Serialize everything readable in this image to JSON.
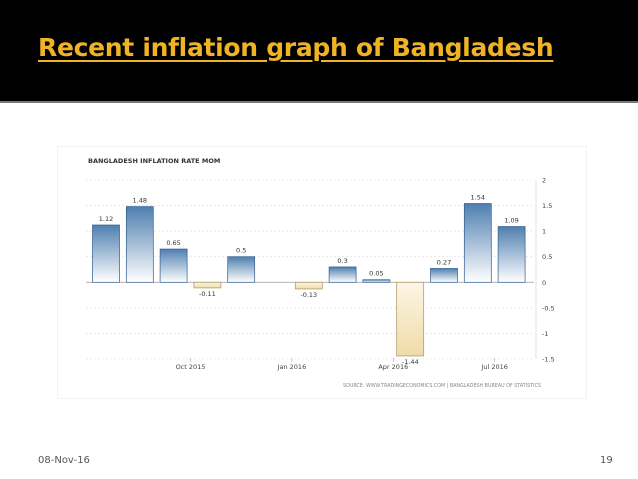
{
  "slide": {
    "title": "Recent inflation graph of Bangladesh",
    "date": "08-Nov-16",
    "page_number": "19"
  },
  "colors": {
    "header_bg": "#000000",
    "title": "#f0b323",
    "positive_bar_top": "#4f7fb0",
    "positive_bar_bottom": "#ffffff",
    "negative_bar_top": "#fdf6e6",
    "negative_bar_bottom": "#f0dba8"
  },
  "chart_data": {
    "type": "bar",
    "title": "BANGLADESH INFLATION RATE MOM",
    "source": "SOURCE: WWW.TRADINGECONOMICS.COM | BANGLADESH BUREAU OF STATISTICS",
    "values": [
      1.12,
      1.48,
      0.65,
      -0.11,
      0.5,
      -0.13,
      0.3,
      0.05,
      -1.44,
      0.27,
      1.54,
      1.09
    ],
    "data_labels": [
      "1.12",
      "1.48",
      "0.65",
      "-0.11",
      "0.5",
      "-0.13",
      "0.3",
      "0.05",
      "-1.44",
      "0.27",
      "1.54",
      "1.09"
    ],
    "x_slots": [
      0,
      1,
      2,
      3,
      4,
      6,
      7,
      8,
      9,
      10,
      11,
      12
    ],
    "x_tick_labels": [
      {
        "slot": 2.5,
        "label": "Oct 2015"
      },
      {
        "slot": 5.5,
        "label": "Jan 2016"
      },
      {
        "slot": 8.5,
        "label": "Apr 2016"
      },
      {
        "slot": 11.5,
        "label": "Jul 2016"
      }
    ],
    "y_ticks": [
      2,
      1.5,
      1,
      0.5,
      0,
      -0.5,
      -1,
      -1.5
    ],
    "y_tick_labels": [
      "2",
      "1.5",
      "1",
      "0.5",
      "0",
      "-0.5",
      "-1",
      "-1.5"
    ],
    "ylim": [
      -1.5,
      2
    ],
    "grid": true,
    "y_axis_side": "right"
  }
}
